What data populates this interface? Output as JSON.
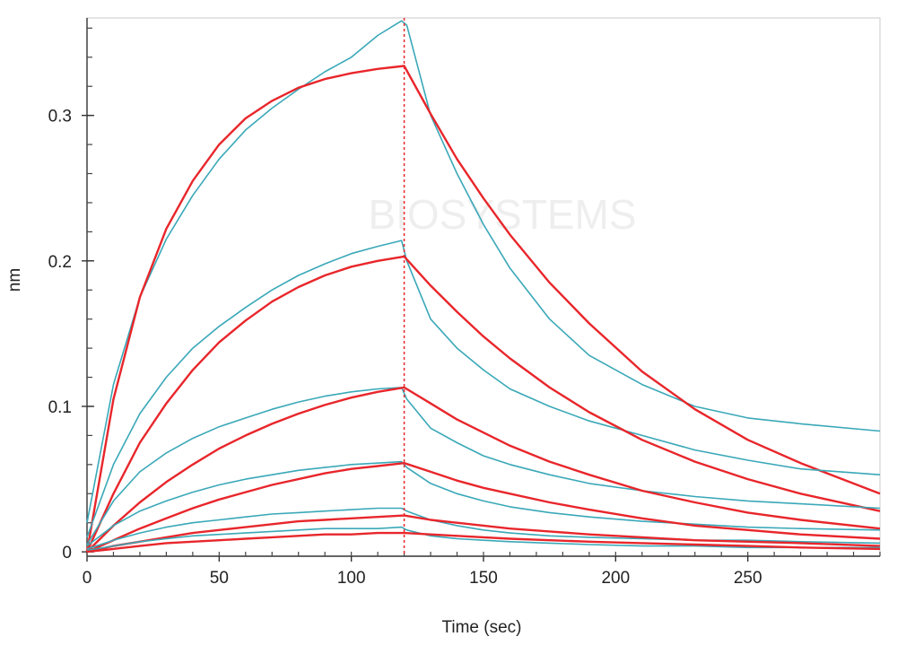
{
  "chart_data": {
    "type": "line",
    "xlabel": "Time (sec)",
    "ylabel": "nm",
    "xlim": [
      0,
      300
    ],
    "ylim": [
      -0.003,
      0.367
    ],
    "x_ticks": [
      0,
      50,
      100,
      150,
      200,
      250
    ],
    "y_ticks": [
      0,
      0.1,
      0.2,
      0.3
    ],
    "x_tick_labels": [
      "0",
      "50",
      "100",
      "150",
      "200",
      "250"
    ],
    "y_tick_labels": [
      "0",
      "0.1",
      "0.2",
      "0.3"
    ],
    "grid": false,
    "legend": "none",
    "watermark": "BIOSYSTEMS",
    "dissociation_start_sec": 120,
    "colors": {
      "measured": "#3aa8b8",
      "fit": "#e8262b",
      "marker": "#e8262b"
    },
    "series": [
      {
        "role": "measured",
        "x": [
          0,
          10,
          20,
          30,
          40,
          50,
          60,
          70,
          80,
          90,
          100,
          110,
          119,
          121,
          130,
          140,
          150,
          160,
          175,
          190,
          210,
          230,
          250,
          270,
          300
        ],
        "y": [
          0.02,
          0.115,
          0.175,
          0.215,
          0.245,
          0.27,
          0.29,
          0.305,
          0.318,
          0.33,
          0.34,
          0.355,
          0.365,
          0.362,
          0.3,
          0.26,
          0.225,
          0.195,
          0.16,
          0.135,
          0.115,
          0.1,
          0.092,
          0.088,
          0.083
        ]
      },
      {
        "role": "fit",
        "x": [
          0,
          10,
          20,
          30,
          40,
          50,
          60,
          70,
          80,
          90,
          100,
          110,
          120,
          130,
          140,
          150,
          160,
          175,
          190,
          210,
          230,
          250,
          270,
          300
        ],
        "y": [
          0.0,
          0.105,
          0.175,
          0.222,
          0.255,
          0.28,
          0.298,
          0.31,
          0.319,
          0.325,
          0.329,
          0.332,
          0.334,
          0.301,
          0.27,
          0.243,
          0.218,
          0.185,
          0.157,
          0.124,
          0.098,
          0.077,
          0.061,
          0.04
        ]
      },
      {
        "role": "measured",
        "x": [
          0,
          10,
          20,
          30,
          40,
          50,
          60,
          70,
          80,
          90,
          100,
          110,
          119,
          121,
          130,
          140,
          150,
          160,
          175,
          190,
          210,
          230,
          250,
          270,
          300
        ],
        "y": [
          0.01,
          0.06,
          0.095,
          0.12,
          0.14,
          0.155,
          0.168,
          0.18,
          0.19,
          0.198,
          0.205,
          0.21,
          0.214,
          0.2,
          0.16,
          0.14,
          0.125,
          0.112,
          0.1,
          0.09,
          0.08,
          0.07,
          0.063,
          0.057,
          0.053
        ]
      },
      {
        "role": "fit",
        "x": [
          0,
          10,
          20,
          30,
          40,
          50,
          60,
          70,
          80,
          90,
          100,
          110,
          120,
          130,
          140,
          150,
          160,
          175,
          190,
          210,
          230,
          250,
          270,
          300
        ],
        "y": [
          0.0,
          0.04,
          0.075,
          0.102,
          0.125,
          0.144,
          0.159,
          0.172,
          0.182,
          0.19,
          0.196,
          0.2,
          0.203,
          0.183,
          0.165,
          0.148,
          0.133,
          0.113,
          0.096,
          0.077,
          0.062,
          0.05,
          0.04,
          0.028
        ]
      },
      {
        "role": "measured",
        "x": [
          0,
          10,
          20,
          30,
          40,
          50,
          60,
          70,
          80,
          90,
          100,
          110,
          119,
          121,
          130,
          140,
          150,
          160,
          175,
          190,
          210,
          230,
          250,
          270,
          300
        ],
        "y": [
          0.005,
          0.035,
          0.055,
          0.068,
          0.078,
          0.086,
          0.092,
          0.098,
          0.103,
          0.107,
          0.11,
          0.112,
          0.113,
          0.105,
          0.085,
          0.075,
          0.066,
          0.06,
          0.053,
          0.047,
          0.042,
          0.038,
          0.035,
          0.033,
          0.03
        ]
      },
      {
        "role": "fit",
        "x": [
          0,
          10,
          20,
          30,
          40,
          50,
          60,
          70,
          80,
          90,
          100,
          110,
          120,
          130,
          140,
          150,
          160,
          175,
          190,
          210,
          230,
          250,
          270,
          300
        ],
        "y": [
          0.0,
          0.018,
          0.034,
          0.048,
          0.06,
          0.071,
          0.08,
          0.088,
          0.095,
          0.101,
          0.106,
          0.11,
          0.113,
          0.102,
          0.091,
          0.082,
          0.073,
          0.062,
          0.053,
          0.042,
          0.034,
          0.027,
          0.022,
          0.016
        ]
      },
      {
        "role": "measured",
        "x": [
          0,
          10,
          20,
          30,
          40,
          50,
          60,
          70,
          80,
          90,
          100,
          110,
          119,
          121,
          130,
          140,
          150,
          160,
          175,
          190,
          210,
          230,
          250,
          270,
          300
        ],
        "y": [
          0.004,
          0.018,
          0.028,
          0.035,
          0.041,
          0.046,
          0.05,
          0.053,
          0.056,
          0.058,
          0.06,
          0.061,
          0.062,
          0.058,
          0.047,
          0.04,
          0.035,
          0.031,
          0.027,
          0.024,
          0.021,
          0.019,
          0.017,
          0.016,
          0.015
        ]
      },
      {
        "role": "fit",
        "x": [
          0,
          10,
          20,
          30,
          40,
          50,
          60,
          70,
          80,
          90,
          100,
          110,
          120,
          130,
          140,
          150,
          160,
          175,
          190,
          210,
          230,
          250,
          270,
          300
        ],
        "y": [
          0.0,
          0.008,
          0.016,
          0.023,
          0.03,
          0.036,
          0.041,
          0.046,
          0.05,
          0.054,
          0.057,
          0.059,
          0.061,
          0.055,
          0.049,
          0.044,
          0.04,
          0.034,
          0.029,
          0.023,
          0.018,
          0.015,
          0.012,
          0.009
        ]
      },
      {
        "role": "measured",
        "x": [
          0,
          10,
          20,
          30,
          40,
          50,
          60,
          70,
          80,
          90,
          100,
          110,
          119,
          121,
          130,
          140,
          150,
          160,
          175,
          190,
          210,
          230,
          250,
          270,
          300
        ],
        "y": [
          0.002,
          0.008,
          0.013,
          0.017,
          0.02,
          0.022,
          0.024,
          0.026,
          0.027,
          0.028,
          0.029,
          0.03,
          0.03,
          0.028,
          0.022,
          0.018,
          0.015,
          0.013,
          0.011,
          0.01,
          0.009,
          0.008,
          0.008,
          0.007,
          0.006
        ]
      },
      {
        "role": "fit",
        "x": [
          0,
          10,
          20,
          30,
          40,
          50,
          60,
          70,
          80,
          90,
          100,
          110,
          120,
          130,
          140,
          150,
          160,
          175,
          190,
          210,
          230,
          250,
          270,
          300
        ],
        "y": [
          0.0,
          0.004,
          0.007,
          0.01,
          0.013,
          0.015,
          0.017,
          0.019,
          0.021,
          0.022,
          0.023,
          0.024,
          0.025,
          0.022,
          0.02,
          0.018,
          0.016,
          0.014,
          0.012,
          0.01,
          0.008,
          0.007,
          0.006,
          0.004
        ]
      },
      {
        "role": "measured",
        "x": [
          0,
          10,
          20,
          30,
          40,
          50,
          60,
          70,
          80,
          90,
          100,
          110,
          119,
          121,
          130,
          140,
          150,
          160,
          175,
          190,
          210,
          230,
          250,
          270,
          300
        ],
        "y": [
          0.001,
          0.004,
          0.007,
          0.009,
          0.011,
          0.012,
          0.013,
          0.014,
          0.015,
          0.016,
          0.016,
          0.016,
          0.017,
          0.015,
          0.011,
          0.009,
          0.008,
          0.007,
          0.006,
          0.005,
          0.004,
          0.004,
          0.003,
          0.003,
          0.003
        ]
      },
      {
        "role": "fit",
        "x": [
          0,
          10,
          20,
          30,
          40,
          50,
          60,
          70,
          80,
          90,
          100,
          110,
          120,
          130,
          140,
          150,
          160,
          175,
          190,
          210,
          230,
          250,
          270,
          300
        ],
        "y": [
          0.0,
          0.002,
          0.004,
          0.006,
          0.007,
          0.008,
          0.009,
          0.01,
          0.011,
          0.012,
          0.012,
          0.013,
          0.013,
          0.012,
          0.011,
          0.01,
          0.009,
          0.008,
          0.007,
          0.006,
          0.005,
          0.004,
          0.003,
          0.002
        ]
      }
    ]
  }
}
